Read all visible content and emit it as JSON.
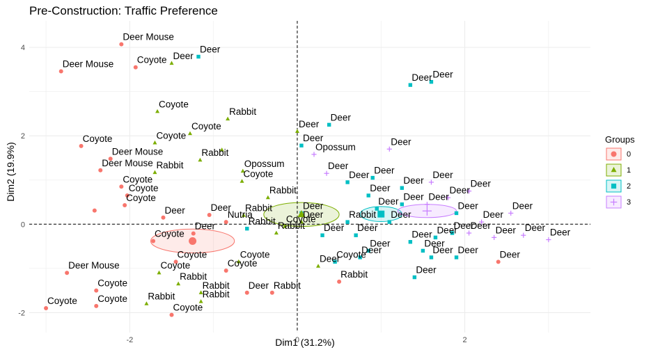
{
  "chart_data": {
    "type": "scatter",
    "title": "Pre-Construction: Traffic Preference",
    "xlabel": "Dim1 (31.2%)",
    "ylabel": "Dim2 (19.9%)",
    "xlim": [
      -3.2,
      3.5
    ],
    "ylim": [
      -2.45,
      4.6
    ],
    "xticks": [
      -2,
      0,
      2
    ],
    "yticks": [
      -2,
      0,
      2,
      4
    ],
    "grid": true,
    "reference_lines": {
      "x": 0,
      "y": 0
    },
    "legend": {
      "title": "Groups",
      "position": "right",
      "entries": [
        "0",
        "1",
        "2",
        "3"
      ]
    },
    "colors": {
      "0": "#f8766d",
      "1": "#7cae00",
      "2": "#00bfc4",
      "3": "#c77cff"
    },
    "markers": {
      "0": "circle",
      "1": "triangle",
      "2": "square",
      "3": "cross"
    },
    "group_means": [
      {
        "group": "0",
        "x": -1.25,
        "y": -0.38
      },
      {
        "group": "1",
        "x": 0.05,
        "y": 0.22
      },
      {
        "group": "2",
        "x": 1.0,
        "y": 0.23
      },
      {
        "group": "3",
        "x": 1.55,
        "y": 0.3
      }
    ],
    "points": [
      {
        "x": -2.1,
        "y": 4.07,
        "g": "0",
        "label": "Deer Mouse"
      },
      {
        "x": -2.82,
        "y": 3.46,
        "g": "0",
        "label": "Deer Mouse"
      },
      {
        "x": -1.93,
        "y": 3.55,
        "g": "0",
        "label": "Coyote"
      },
      {
        "x": -1.5,
        "y": 3.64,
        "g": "1",
        "label": "Deer"
      },
      {
        "x": -1.18,
        "y": 3.79,
        "g": "2",
        "label": "Deer"
      },
      {
        "x": -1.67,
        "y": 2.55,
        "g": "1",
        "label": "Coyote"
      },
      {
        "x": -0.83,
        "y": 2.38,
        "g": "1",
        "label": "Rabbit"
      },
      {
        "x": -2.58,
        "y": 1.77,
        "g": "0",
        "label": "Coyote"
      },
      {
        "x": -1.28,
        "y": 2.05,
        "g": "1",
        "label": "Coyote"
      },
      {
        "x": -0.9,
        "y": 1.68,
        "g": "1",
        "label": ""
      },
      {
        "x": -1.7,
        "y": 1.84,
        "g": "1",
        "label": "Coyote"
      },
      {
        "x": -1.16,
        "y": 1.45,
        "g": "1",
        "label": "Rabbit"
      },
      {
        "x": -2.23,
        "y": 1.48,
        "g": "0",
        "label": "Deer Mouse"
      },
      {
        "x": -2.35,
        "y": 1.22,
        "g": "0",
        "label": "Deer Mouse"
      },
      {
        "x": -1.7,
        "y": 1.17,
        "g": "1",
        "label": "Rabbit"
      },
      {
        "x": -0.65,
        "y": 1.2,
        "g": "1",
        "label": "Opossum"
      },
      {
        "x": -0.66,
        "y": 0.97,
        "g": "1",
        "label": "Coyote"
      },
      {
        "x": -2.1,
        "y": 0.85,
        "g": "0",
        "label": "Coyote"
      },
      {
        "x": -2.03,
        "y": 0.65,
        "g": "0",
        "label": "Coyote"
      },
      {
        "x": -2.06,
        "y": 0.43,
        "g": "0",
        "label": "Coyote"
      },
      {
        "x": -2.42,
        "y": 0.31,
        "g": "0",
        "label": ""
      },
      {
        "x": -1.6,
        "y": 0.15,
        "g": "0",
        "label": "Deer"
      },
      {
        "x": -1.05,
        "y": 0.21,
        "g": "0",
        "label": "Deer"
      },
      {
        "x": -0.85,
        "y": 0.05,
        "g": "0",
        "label": "Nutria"
      },
      {
        "x": -0.64,
        "y": 0.2,
        "g": "1",
        "label": "Rabbit"
      },
      {
        "x": -0.35,
        "y": 0.6,
        "g": "1",
        "label": "Rabbit"
      },
      {
        "x": -1.24,
        "y": -0.21,
        "g": "0",
        "label": "Deer"
      },
      {
        "x": -1.72,
        "y": -0.38,
        "g": "0",
        "label": "Coyote"
      },
      {
        "x": -0.6,
        "y": -0.1,
        "g": "2",
        "label": "Rabbit"
      },
      {
        "x": -0.25,
        "y": -0.2,
        "g": "1",
        "label": "Rabbit"
      },
      {
        "x": -0.15,
        "y": -0.05,
        "g": "1",
        "label": "Coyote"
      },
      {
        "x": -1.45,
        "y": -0.85,
        "g": "0",
        "label": "Coyote"
      },
      {
        "x": -0.7,
        "y": -0.85,
        "g": "1",
        "label": "Coyote"
      },
      {
        "x": -0.85,
        "y": -1.05,
        "g": "0",
        "label": "Coyote"
      },
      {
        "x": -1.65,
        "y": -1.1,
        "g": "1",
        "label": "Coyote"
      },
      {
        "x": -2.75,
        "y": -1.1,
        "g": "0",
        "label": "Deer Mouse"
      },
      {
        "x": -1.42,
        "y": -1.35,
        "g": "1",
        "label": "Rabbit"
      },
      {
        "x": -0.6,
        "y": -1.55,
        "g": "0",
        "label": "Deer"
      },
      {
        "x": -0.3,
        "y": -1.55,
        "g": "0",
        "label": "Rabbit"
      },
      {
        "x": -1.15,
        "y": -1.55,
        "g": "1",
        "label": "Rabbit"
      },
      {
        "x": -2.4,
        "y": -1.5,
        "g": "0",
        "label": "Coyote"
      },
      {
        "x": -1.8,
        "y": -1.8,
        "g": "1",
        "label": "Rabbit"
      },
      {
        "x": -1.15,
        "y": -1.75,
        "g": "1",
        "label": "Rabbit"
      },
      {
        "x": -2.4,
        "y": -1.85,
        "g": "0",
        "label": "Coyote"
      },
      {
        "x": -3.0,
        "y": -1.9,
        "g": "0",
        "label": "Coyote"
      },
      {
        "x": -1.5,
        "y": -2.05,
        "g": "0",
        "label": "Coyote"
      },
      {
        "x": 0.0,
        "y": 2.1,
        "g": "1",
        "label": "Deer"
      },
      {
        "x": 0.38,
        "y": 2.25,
        "g": "2",
        "label": "Deer"
      },
      {
        "x": 0.05,
        "y": 1.78,
        "g": "2",
        "label": "Deer"
      },
      {
        "x": 0.2,
        "y": 1.58,
        "g": "3",
        "label": "Opossum"
      },
      {
        "x": 0.35,
        "y": 1.15,
        "g": "3",
        "label": "Deer"
      },
      {
        "x": 0.6,
        "y": 0.95,
        "g": "2",
        "label": "Deer"
      },
      {
        "x": 1.1,
        "y": 1.7,
        "g": "3",
        "label": "Deer"
      },
      {
        "x": 0.9,
        "y": 1.05,
        "g": "2",
        "label": "Deer"
      },
      {
        "x": 1.25,
        "y": 0.82,
        "g": "2",
        "label": "Deer"
      },
      {
        "x": 1.6,
        "y": 0.95,
        "g": "3",
        "label": "Deer"
      },
      {
        "x": 1.35,
        "y": 3.15,
        "g": "2",
        "label": "Deer"
      },
      {
        "x": 1.6,
        "y": 3.22,
        "g": "2",
        "label": "Deer"
      },
      {
        "x": 0.05,
        "y": 0.25,
        "g": "2",
        "label": "Deer"
      },
      {
        "x": 0.05,
        "y": 0.05,
        "g": "1",
        "label": "Deer"
      },
      {
        "x": 0.6,
        "y": 0.05,
        "g": "2",
        "label": "Rabbit"
      },
      {
        "x": 0.85,
        "y": 0.65,
        "g": "2",
        "label": "Deer"
      },
      {
        "x": 0.95,
        "y": 0.35,
        "g": "2",
        "label": "Deer"
      },
      {
        "x": 1.25,
        "y": 0.45,
        "g": "2",
        "label": "Deer"
      },
      {
        "x": 1.55,
        "y": 0.45,
        "g": "3",
        "label": "Deer"
      },
      {
        "x": 1.8,
        "y": 0.6,
        "g": "3",
        "label": "Deer"
      },
      {
        "x": 2.05,
        "y": 0.75,
        "g": "3",
        "label": "Deer"
      },
      {
        "x": 1.9,
        "y": 0.25,
        "g": "2",
        "label": "Deer"
      },
      {
        "x": 2.55,
        "y": 0.25,
        "g": "3",
        "label": "Deer"
      },
      {
        "x": 2.2,
        "y": 0.05,
        "g": "3",
        "label": "Deer"
      },
      {
        "x": 1.1,
        "y": 0.05,
        "g": "2",
        "label": "Deer"
      },
      {
        "x": 0.7,
        "y": -0.25,
        "g": "2",
        "label": "Deer"
      },
      {
        "x": 0.3,
        "y": -0.25,
        "g": "2",
        "label": "Deer"
      },
      {
        "x": 1.35,
        "y": -0.4,
        "g": "2",
        "label": "Deer"
      },
      {
        "x": 1.65,
        "y": -0.3,
        "g": "2",
        "label": "Deer"
      },
      {
        "x": 1.85,
        "y": -0.2,
        "g": "2",
        "label": "Deer"
      },
      {
        "x": 2.05,
        "y": -0.2,
        "g": "3",
        "label": "Deer"
      },
      {
        "x": 2.35,
        "y": -0.3,
        "g": "3",
        "label": "Deer"
      },
      {
        "x": 2.7,
        "y": -0.25,
        "g": "3",
        "label": "Deer"
      },
      {
        "x": 3.0,
        "y": -0.35,
        "g": "3",
        "label": "Deer"
      },
      {
        "x": 1.5,
        "y": -0.6,
        "g": "2",
        "label": "Deer"
      },
      {
        "x": 1.6,
        "y": -0.75,
        "g": "2",
        "label": "Deer"
      },
      {
        "x": 1.9,
        "y": -0.75,
        "g": "2",
        "label": "Deer"
      },
      {
        "x": 2.4,
        "y": -0.85,
        "g": "0",
        "label": "Deer"
      },
      {
        "x": 0.85,
        "y": -0.6,
        "g": "2",
        "label": "Deer"
      },
      {
        "x": 0.75,
        "y": -0.75,
        "g": "2",
        "label": "Deer"
      },
      {
        "x": 0.45,
        "y": -0.85,
        "g": "2",
        "label": "Coyote"
      },
      {
        "x": 0.25,
        "y": -0.95,
        "g": "1",
        "label": "Deer"
      },
      {
        "x": 0.5,
        "y": -1.3,
        "g": "0",
        "label": "Rabbit"
      },
      {
        "x": 1.4,
        "y": -1.2,
        "g": "2",
        "label": "Deer"
      }
    ]
  }
}
